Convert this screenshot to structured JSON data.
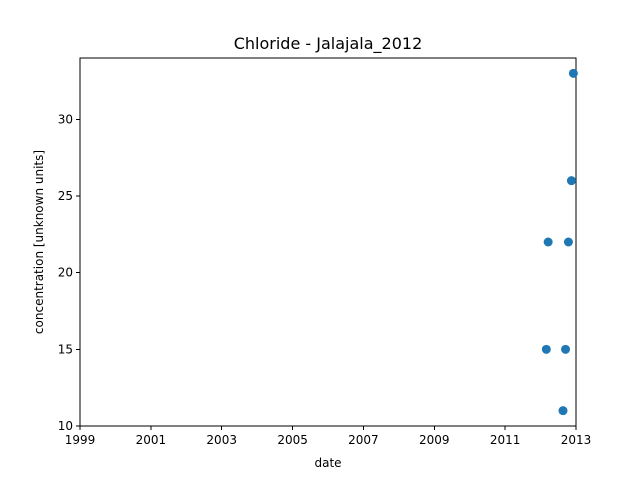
{
  "chart_data": {
    "type": "scatter",
    "title": "Chloride - Jalajala_2012",
    "xlabel": "date",
    "ylabel": "concentration [unknown units]",
    "x_axis_type": "date",
    "xlim": [
      "1999-01-01",
      "2013-01-01"
    ],
    "ylim": [
      10,
      34
    ],
    "x_ticks": [
      {
        "value": "1999-01-01",
        "label": "1999"
      },
      {
        "value": "2001-01-01",
        "label": "2001"
      },
      {
        "value": "2003-01-01",
        "label": "2003"
      },
      {
        "value": "2005-01-01",
        "label": "2005"
      },
      {
        "value": "2007-01-01",
        "label": "2007"
      },
      {
        "value": "2009-01-01",
        "label": "2009"
      },
      {
        "value": "2011-01-01",
        "label": "2011"
      },
      {
        "value": "2013-01-01",
        "label": "2013"
      }
    ],
    "y_ticks": [
      {
        "value": 10,
        "label": "10"
      },
      {
        "value": 15,
        "label": "15"
      },
      {
        "value": 20,
        "label": "20"
      },
      {
        "value": 25,
        "label": "25"
      },
      {
        "value": 30,
        "label": "30"
      }
    ],
    "grid": false,
    "marker_color": "#1f77b4",
    "points": [
      {
        "x": "2012-03-01",
        "y": 15
      },
      {
        "x": "2012-03-20",
        "y": 22
      },
      {
        "x": "2012-08-20",
        "y": 11
      },
      {
        "x": "2012-09-15",
        "y": 15
      },
      {
        "x": "2012-10-15",
        "y": 22
      },
      {
        "x": "2012-11-15",
        "y": 26
      },
      {
        "x": "2012-12-05",
        "y": 33
      }
    ]
  }
}
